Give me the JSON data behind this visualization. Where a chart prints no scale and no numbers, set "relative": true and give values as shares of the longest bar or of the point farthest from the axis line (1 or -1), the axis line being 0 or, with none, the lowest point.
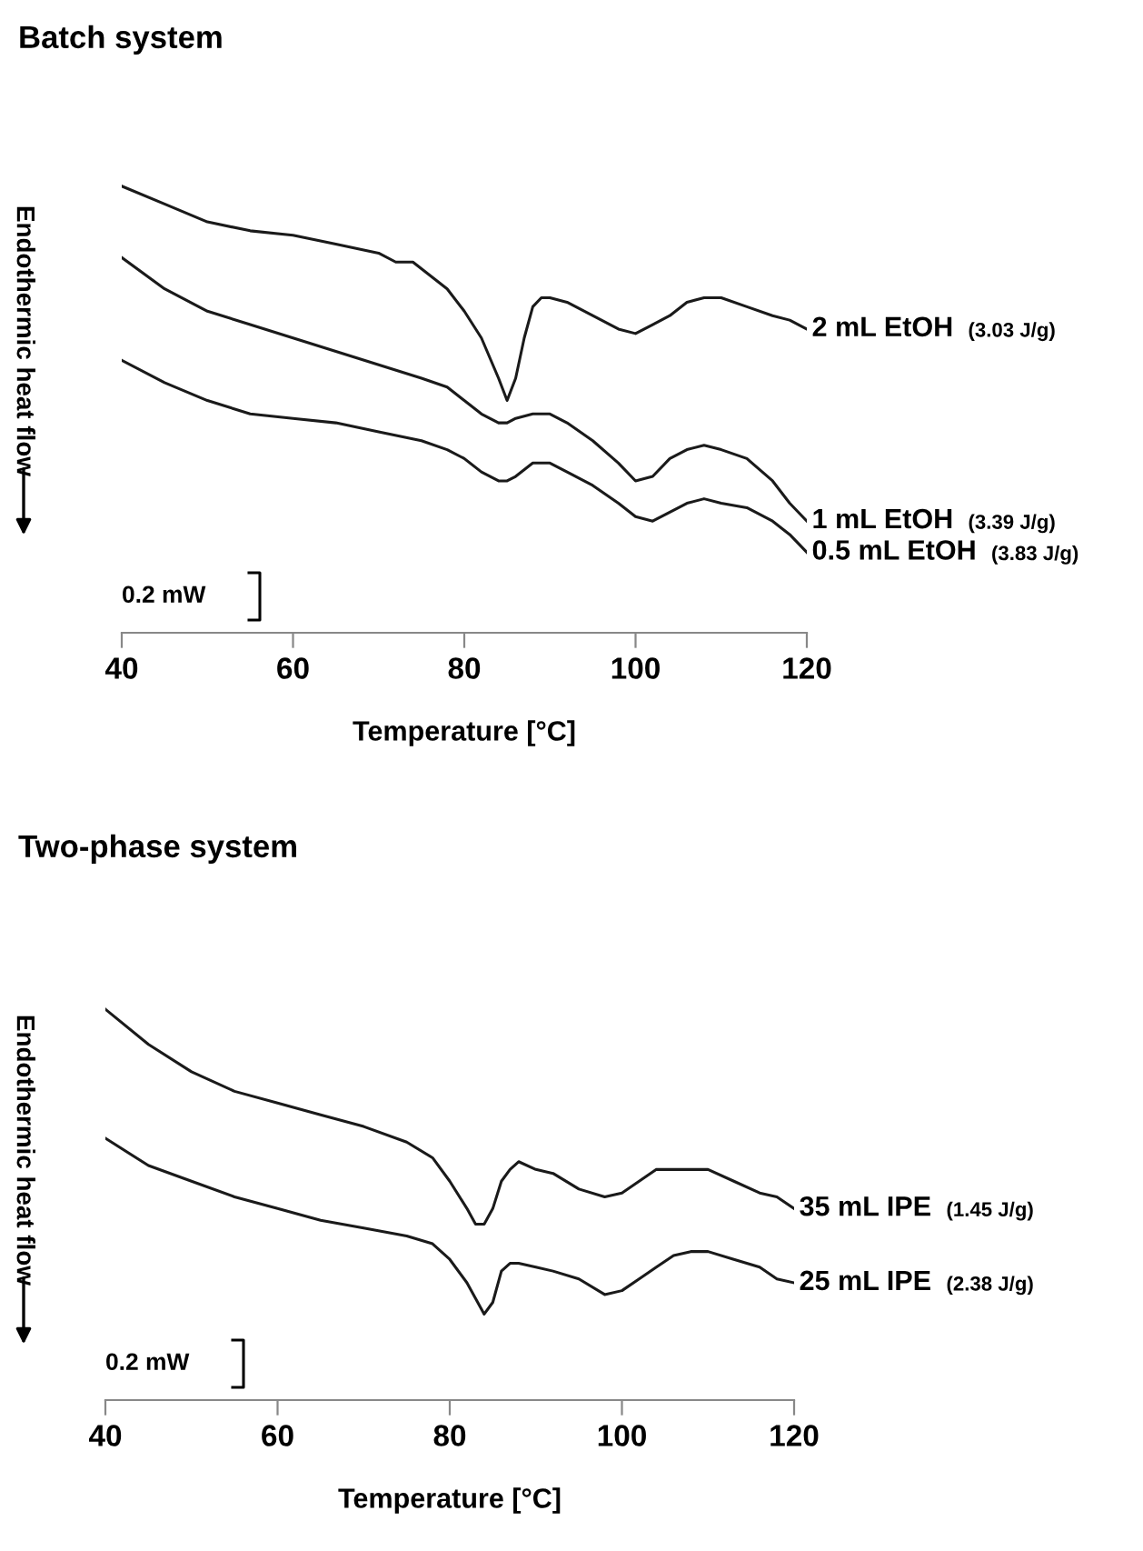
{
  "chart_data": [
    {
      "type": "line",
      "title": "Batch system",
      "xlabel": "Temperature [°C]",
      "ylabel": "Endothermic heat flow",
      "relative": true,
      "xlim": [
        40,
        120
      ],
      "xticks": [
        40,
        60,
        80,
        100,
        120
      ],
      "grid": false,
      "legend": false,
      "marker": "none",
      "line_style": "solid",
      "x": [
        40,
        45,
        50,
        55,
        60,
        65,
        70,
        72,
        74,
        76,
        78,
        80,
        82,
        84,
        85,
        86,
        87,
        88,
        89,
        90,
        92,
        95,
        98,
        100,
        102,
        104,
        106,
        108,
        110,
        113,
        116,
        118,
        120
      ],
      "series": [
        {
          "name": "2 mL EtOH",
          "color": "#1a1a1a",
          "values": [
            1.0,
            0.96,
            0.92,
            0.9,
            0.89,
            0.87,
            0.85,
            0.83,
            0.83,
            0.8,
            0.77,
            0.72,
            0.66,
            0.57,
            0.52,
            0.57,
            0.66,
            0.73,
            0.75,
            0.75,
            0.74,
            0.71,
            0.68,
            0.67,
            0.69,
            0.71,
            0.74,
            0.75,
            0.75,
            0.73,
            0.71,
            0.7,
            0.68
          ]
        },
        {
          "name": "1 mL EtOH",
          "color": "#1a1a1a",
          "x": [
            40,
            45,
            50,
            55,
            60,
            65,
            70,
            75,
            78,
            80,
            82,
            84,
            85,
            86,
            88,
            90,
            92,
            95,
            98,
            100,
            102,
            104,
            106,
            108,
            110,
            113,
            116,
            118,
            120
          ],
          "values": [
            0.84,
            0.77,
            0.72,
            0.69,
            0.66,
            0.63,
            0.6,
            0.57,
            0.55,
            0.52,
            0.49,
            0.47,
            0.47,
            0.48,
            0.49,
            0.49,
            0.47,
            0.43,
            0.38,
            0.34,
            0.35,
            0.39,
            0.41,
            0.42,
            0.41,
            0.39,
            0.34,
            0.29,
            0.25
          ]
        },
        {
          "name": "0.5 mL EtOH",
          "color": "#1a1a1a",
          "x": [
            40,
            45,
            50,
            55,
            60,
            65,
            70,
            75,
            78,
            80,
            82,
            84,
            85,
            86,
            88,
            90,
            92,
            95,
            98,
            100,
            102,
            104,
            106,
            108,
            110,
            113,
            116,
            118,
            120
          ],
          "values": [
            0.61,
            0.56,
            0.52,
            0.49,
            0.48,
            0.47,
            0.45,
            0.43,
            0.41,
            0.39,
            0.36,
            0.34,
            0.34,
            0.35,
            0.38,
            0.38,
            0.36,
            0.33,
            0.29,
            0.26,
            0.25,
            0.27,
            0.29,
            0.3,
            0.29,
            0.28,
            0.25,
            0.22,
            0.18
          ]
        }
      ],
      "annotations": [
        "(3.03 J/g)",
        "(3.39 J/g)",
        "(3.83 J/g)",
        "0.2 mW"
      ]
    },
    {
      "type": "line",
      "title": "Two-phase system",
      "xlabel": "Temperature [°C]",
      "ylabel": "Endothermic heat flow",
      "relative": true,
      "xlim": [
        40,
        120
      ],
      "xticks": [
        40,
        60,
        80,
        100,
        120
      ],
      "grid": false,
      "legend": false,
      "marker": "none",
      "line_style": "solid",
      "x": [
        40,
        45,
        50,
        55,
        60,
        65,
        70,
        75,
        78,
        80,
        82,
        83,
        84,
        85,
        86,
        87,
        88,
        90,
        92,
        95,
        98,
        100,
        102,
        104,
        106,
        108,
        110,
        113,
        116,
        118,
        120
      ],
      "series": [
        {
          "name": "35 mL IPE",
          "color": "#1a1a1a",
          "values": [
            1.0,
            0.91,
            0.84,
            0.79,
            0.76,
            0.73,
            0.7,
            0.66,
            0.62,
            0.56,
            0.49,
            0.45,
            0.45,
            0.49,
            0.56,
            0.59,
            0.61,
            0.59,
            0.58,
            0.54,
            0.52,
            0.53,
            0.56,
            0.59,
            0.59,
            0.59,
            0.59,
            0.56,
            0.53,
            0.52,
            0.49
          ]
        },
        {
          "name": "25 mL IPE",
          "color": "#1a1a1a",
          "values": [
            0.67,
            0.6,
            0.56,
            0.52,
            0.49,
            0.46,
            0.44,
            0.42,
            0.4,
            0.36,
            0.3,
            0.26,
            0.22,
            0.25,
            0.33,
            0.35,
            0.35,
            0.34,
            0.33,
            0.31,
            0.27,
            0.28,
            0.31,
            0.34,
            0.37,
            0.38,
            0.38,
            0.36,
            0.34,
            0.31,
            0.3
          ]
        }
      ],
      "annotations": [
        "(1.45 J/g)",
        "(2.38 J/g)",
        "0.2 mW"
      ]
    }
  ]
}
